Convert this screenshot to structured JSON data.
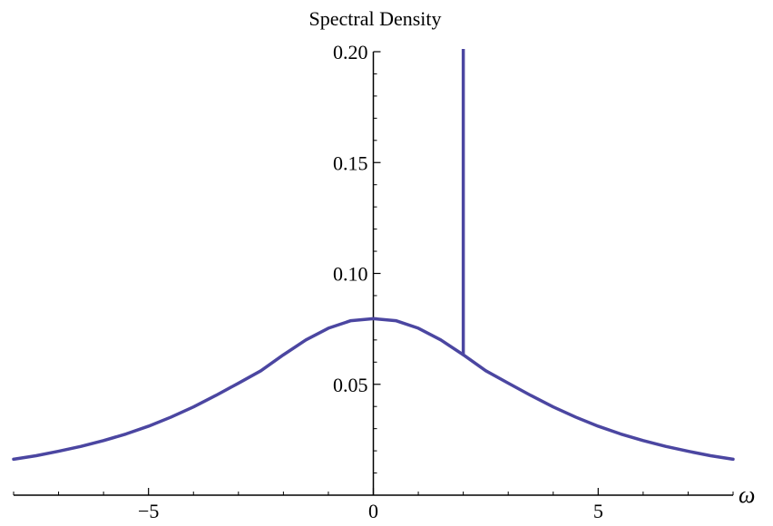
{
  "chart_data": {
    "type": "line",
    "title": "",
    "xlabel": "ω",
    "ylabel": "Spectral Density",
    "xlim": [
      -8,
      8
    ],
    "ylim": [
      0,
      0.2
    ],
    "grid": false,
    "x_ticks": [
      {
        "value": -5,
        "label": "−5"
      },
      {
        "value": 0,
        "label": "0"
      },
      {
        "value": 5,
        "label": "5"
      }
    ],
    "y_ticks": [
      {
        "value": 0.05,
        "label": "0.05"
      },
      {
        "value": 0.1,
        "label": "0.10"
      },
      {
        "value": 0.15,
        "label": "0.15"
      },
      {
        "value": 0.2,
        "label": "0.20"
      }
    ],
    "series": [
      {
        "name": "",
        "color": "#4b46a1",
        "x": [
          -8,
          -7.5,
          -7,
          -6.5,
          -6,
          -5.5,
          -5,
          -4.5,
          -4,
          -3.5,
          -3,
          -2.5,
          -2,
          -1.5,
          -1,
          -0.5,
          0,
          0.5,
          1,
          1.5,
          2,
          2.5,
          3,
          3.5,
          4,
          4.5,
          5,
          5.5,
          6,
          6.5,
          7,
          7.5,
          8
        ],
        "y": [
          0.0162,
          0.0178,
          0.0198,
          0.022,
          0.0246,
          0.0276,
          0.0311,
          0.0352,
          0.0398,
          0.045,
          0.0505,
          0.0561,
          0.0633,
          0.07,
          0.0753,
          0.0787,
          0.0796,
          0.0787,
          0.0753,
          0.07,
          0.0633,
          0.0561,
          0.0505,
          0.045,
          0.0398,
          0.0352,
          0.0311,
          0.0276,
          0.0246,
          0.022,
          0.0198,
          0.0178,
          0.0162
        ]
      }
    ],
    "spikes": [
      {
        "x": 2,
        "y_from": 0.0637,
        "y_to": 0.2,
        "color": "#4b46a1"
      }
    ]
  }
}
